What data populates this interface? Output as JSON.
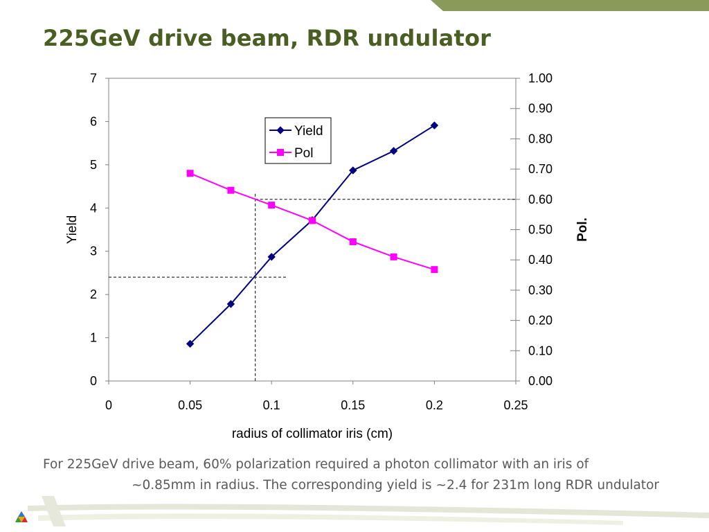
{
  "slide": {
    "title": "225GeV drive beam, RDR undulator",
    "caption_line1": "For 225GeV drive beam, 60% polarization required a photon collimator with an iris of",
    "caption_line2": "~0.85mm in radius.  The corresponding yield is ~2.4 for 231m long RDR undulator",
    "title_color": "#4a5d23",
    "accent_color": "#8a9a5b",
    "logo_icon": "triangle-logo-icon"
  },
  "chart_data": {
    "type": "line",
    "x": [
      0.05,
      0.075,
      0.1,
      0.125,
      0.15,
      0.175,
      0.2
    ],
    "series": [
      {
        "name": "Yield",
        "axis": "left",
        "color": "#000080",
        "marker": "diamond",
        "values": [
          0.86,
          1.78,
          2.87,
          3.72,
          4.87,
          5.32,
          5.91
        ]
      },
      {
        "name": "Pol",
        "axis": "right",
        "color": "#ff00ff",
        "marker": "square",
        "values": [
          0.686,
          0.63,
          0.581,
          0.53,
          0.46,
          0.41,
          0.368
        ]
      }
    ],
    "xlabel": "radius of collimator iris (cm)",
    "ylabel_left": "Yield",
    "ylabel_right": "Pol.",
    "xlim": [
      0,
      0.25
    ],
    "ylim_left": [
      0,
      7
    ],
    "ylim_right": [
      0,
      1.0
    ],
    "xticks": [
      "0",
      "0.05",
      "0.1",
      "0.15",
      "0.2",
      "0.25"
    ],
    "yticks_left": [
      "0",
      "1",
      "2",
      "3",
      "4",
      "5",
      "6",
      "7"
    ],
    "yticks_right": [
      "0.00",
      "0.10",
      "0.20",
      "0.30",
      "0.40",
      "0.50",
      "0.60",
      "0.70",
      "0.80",
      "0.90",
      "1.00"
    ],
    "reference_lines": {
      "x": 0.09,
      "yield": 2.4,
      "pol": 0.6
    },
    "grid": false,
    "legend_position": "top-center"
  }
}
